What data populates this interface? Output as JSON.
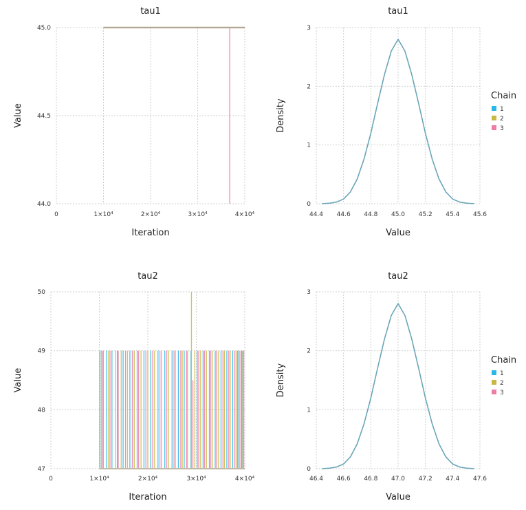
{
  "chart_data": [
    {
      "type": "line",
      "panel": "trace",
      "title": "tau1",
      "xlabel": "Iteration",
      "ylabel": "Value",
      "xlim": [
        0,
        40000
      ],
      "ylim": [
        44.0,
        45.0
      ],
      "xticks": [
        0,
        10000,
        20000,
        30000,
        40000
      ],
      "xtick_labels": [
        "0",
        "1×10⁴",
        "2×10⁴",
        "3×10⁴",
        "4×10⁴"
      ],
      "yticks": [
        44.0,
        44.5,
        45.0
      ],
      "ytick_labels": [
        "44.0",
        "44.5",
        "45.0"
      ],
      "grid": true,
      "series": [
        {
          "color": "#29b6e8",
          "x": [
            10000,
            40000
          ],
          "y": [
            45.0,
            45.0
          ]
        },
        {
          "color": "#c9b843",
          "x": [
            10000,
            40000
          ],
          "y": [
            45.0,
            45.0
          ]
        },
        {
          "color": "#f07aa8",
          "x": [
            10000,
            36800,
            36800,
            36800,
            40000
          ],
          "y": [
            45.0,
            45.0,
            44.0,
            45.0,
            45.0
          ]
        }
      ]
    },
    {
      "type": "line",
      "panel": "density",
      "title": "tau1",
      "xlabel": "Value",
      "ylabel": "Density",
      "xlim": [
        44.4,
        45.6
      ],
      "ylim": [
        0,
        3
      ],
      "xticks": [
        44.4,
        44.6,
        44.8,
        45.0,
        45.2,
        45.4,
        45.6
      ],
      "xtick_labels": [
        "44.4",
        "44.6",
        "44.8",
        "45.0",
        "45.2",
        "45.4",
        "45.6"
      ],
      "yticks": [
        0,
        1,
        2,
        3
      ],
      "ytick_labels": [
        "0",
        "1",
        "2",
        "3"
      ],
      "grid": true,
      "legend": {
        "title": "Chain",
        "position": "right",
        "entries": [
          {
            "label": "1",
            "color": "#29b6e8"
          },
          {
            "label": "2",
            "color": "#c9b843"
          },
          {
            "label": "3",
            "color": "#f07aa8"
          }
        ]
      },
      "curve": {
        "color": "#6aa6b8",
        "x": [
          44.44,
          44.5,
          44.55,
          44.6,
          44.65,
          44.7,
          44.75,
          44.8,
          44.85,
          44.9,
          44.95,
          45.0,
          45.05,
          45.1,
          45.15,
          45.2,
          45.25,
          45.3,
          45.35,
          45.4,
          45.45,
          45.5,
          45.56
        ],
        "y": [
          0.0,
          0.01,
          0.03,
          0.08,
          0.2,
          0.42,
          0.76,
          1.2,
          1.71,
          2.2,
          2.6,
          2.8,
          2.6,
          2.2,
          1.71,
          1.2,
          0.76,
          0.42,
          0.2,
          0.08,
          0.03,
          0.01,
          0.0
        ]
      }
    },
    {
      "type": "line",
      "panel": "trace",
      "title": "tau2",
      "xlabel": "Iteration",
      "ylabel": "Value",
      "xlim": [
        0,
        40000
      ],
      "ylim": [
        47,
        50
      ],
      "xticks": [
        0,
        10000,
        20000,
        30000,
        40000
      ],
      "xtick_labels": [
        "0",
        "1×10⁴",
        "2×10⁴",
        "3×10⁴",
        "4×10⁴"
      ],
      "yticks": [
        47,
        48,
        49,
        50
      ],
      "ytick_labels": [
        "47",
        "48",
        "49",
        "50"
      ],
      "grid": true,
      "series": [
        {
          "color": "#29b6e8",
          "x": [
            10100,
            10800,
            11500,
            12600,
            13700,
            14900,
            16300,
            17800,
            19200,
            20600,
            22100,
            23500,
            25000,
            26300,
            27500,
            28900,
            30200,
            31400,
            32700,
            33900,
            35100,
            36300,
            37500,
            38600,
            39400
          ],
          "y": [
            49,
            49,
            49,
            49,
            49,
            49,
            49,
            49,
            49,
            49,
            49,
            49,
            49,
            49,
            49,
            49,
            49,
            49,
            49,
            49,
            49,
            49,
            49,
            49,
            49
          ]
        },
        {
          "color": "#c9b843",
          "x": [
            10400,
            11900,
            13300,
            14500,
            15800,
            17200,
            18600,
            20000,
            21400,
            22800,
            24300,
            25700,
            27100,
            28200,
            29000,
            29700,
            30900,
            32100,
            33300,
            34600,
            35800,
            37000,
            38200,
            38900,
            39600
          ],
          "y": [
            49,
            49,
            49,
            49,
            49,
            49,
            49,
            49,
            49,
            49,
            49,
            49,
            49,
            49,
            50,
            49,
            49,
            49,
            49,
            49,
            49,
            49,
            49,
            49,
            49
          ]
        },
        {
          "color": "#f07aa8",
          "x": [
            10700,
            12200,
            13900,
            15400,
            16800,
            18100,
            19600,
            21000,
            22500,
            23900,
            25400,
            26800,
            28000,
            29300,
            30500,
            31700,
            33000,
            34200,
            35500,
            36700,
            37900,
            38500,
            39200,
            39800
          ],
          "y": [
            49,
            49,
            49,
            49,
            49,
            49,
            49,
            49,
            49,
            49,
            49,
            49,
            49,
            48.5,
            49,
            49,
            49,
            49,
            49,
            49,
            49,
            49,
            49,
            49
          ]
        }
      ]
    },
    {
      "type": "line",
      "panel": "density",
      "title": "tau2",
      "xlabel": "Value",
      "ylabel": "Density",
      "xlim": [
        46.4,
        47.6
      ],
      "ylim": [
        0,
        3
      ],
      "xticks": [
        46.4,
        46.6,
        46.8,
        47.0,
        47.2,
        47.4,
        47.6
      ],
      "xtick_labels": [
        "46.4",
        "46.6",
        "46.8",
        "47.0",
        "47.2",
        "47.4",
        "47.6"
      ],
      "yticks": [
        0,
        1,
        2,
        3
      ],
      "ytick_labels": [
        "0",
        "1",
        "2",
        "3"
      ],
      "grid": true,
      "legend": {
        "title": "Chain",
        "position": "right",
        "entries": [
          {
            "label": "1",
            "color": "#29b6e8"
          },
          {
            "label": "2",
            "color": "#c9b843"
          },
          {
            "label": "3",
            "color": "#f07aa8"
          }
        ]
      },
      "curve": {
        "color": "#6aa6b8",
        "x": [
          46.44,
          46.5,
          46.55,
          46.6,
          46.65,
          46.7,
          46.75,
          46.8,
          46.85,
          46.9,
          46.95,
          47.0,
          47.05,
          47.1,
          47.15,
          47.2,
          47.25,
          47.3,
          47.35,
          47.4,
          47.45,
          47.5,
          47.56
        ],
        "y": [
          0.0,
          0.01,
          0.03,
          0.08,
          0.2,
          0.42,
          0.76,
          1.2,
          1.71,
          2.2,
          2.6,
          2.8,
          2.6,
          2.2,
          1.71,
          1.2,
          0.76,
          0.42,
          0.2,
          0.08,
          0.03,
          0.01,
          0.0
        ]
      }
    }
  ]
}
